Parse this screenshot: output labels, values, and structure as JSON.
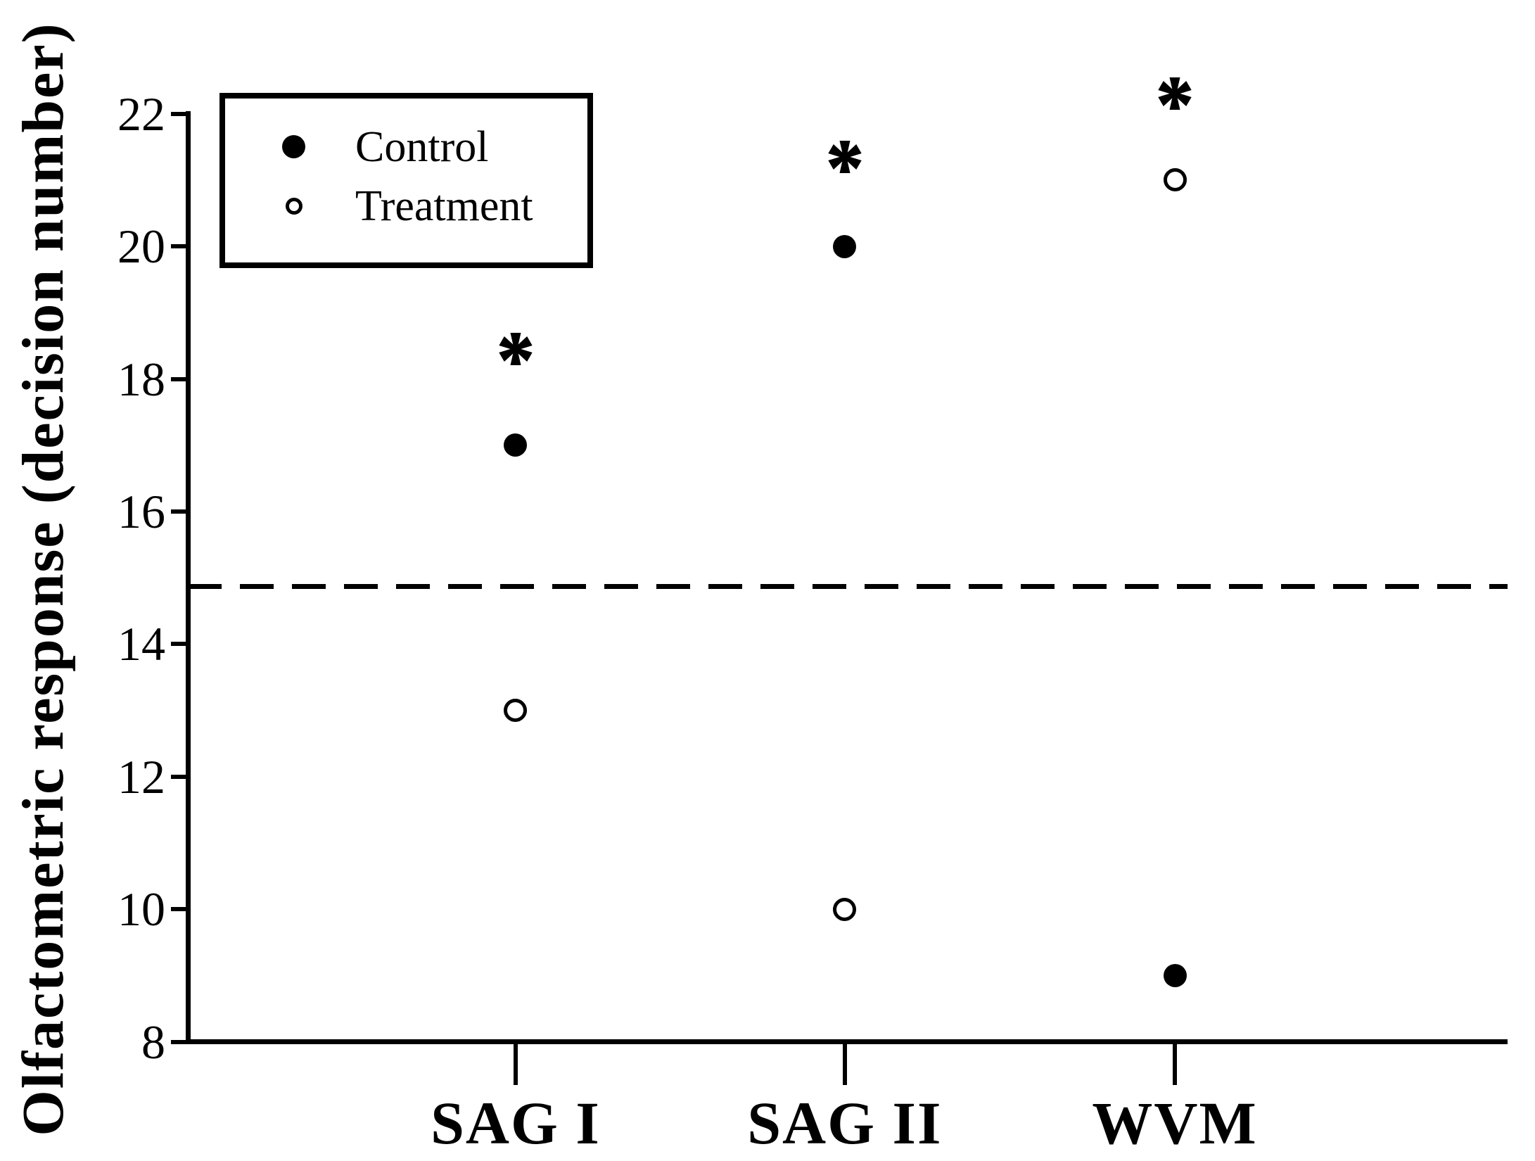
{
  "figure": {
    "background_color": "#ffffff",
    "ink_color": "#000000"
  },
  "chart_data": {
    "type": "scatter",
    "title": "",
    "xlabel": "",
    "ylabel": "Olfactometric response (decision number)",
    "categories": [
      "SAG I",
      "SAG II",
      "WVM"
    ],
    "series": [
      {
        "name": "Control",
        "marker": "filled-circle",
        "values": [
          17.0,
          20.0,
          9.0
        ]
      },
      {
        "name": "Treatment",
        "marker": "open-circle",
        "values": [
          13.0,
          10.0,
          21.0
        ]
      }
    ],
    "significance_markers": [
      {
        "category": "SAG I",
        "symbol": "*",
        "y": 18.45
      },
      {
        "category": "SAG II",
        "symbol": "*",
        "y": 21.35
      },
      {
        "category": "WVM",
        "symbol": "*",
        "y": 22.3
      }
    ],
    "reference_line": {
      "y": 14.87,
      "style": "dashed"
    },
    "yticks": [
      22,
      20,
      18,
      16,
      14,
      12,
      10,
      8
    ],
    "ylim": [
      8,
      22.5
    ],
    "grid": false,
    "legend": {
      "position": "upper-left",
      "entries": [
        "Control",
        "Treatment"
      ]
    }
  }
}
